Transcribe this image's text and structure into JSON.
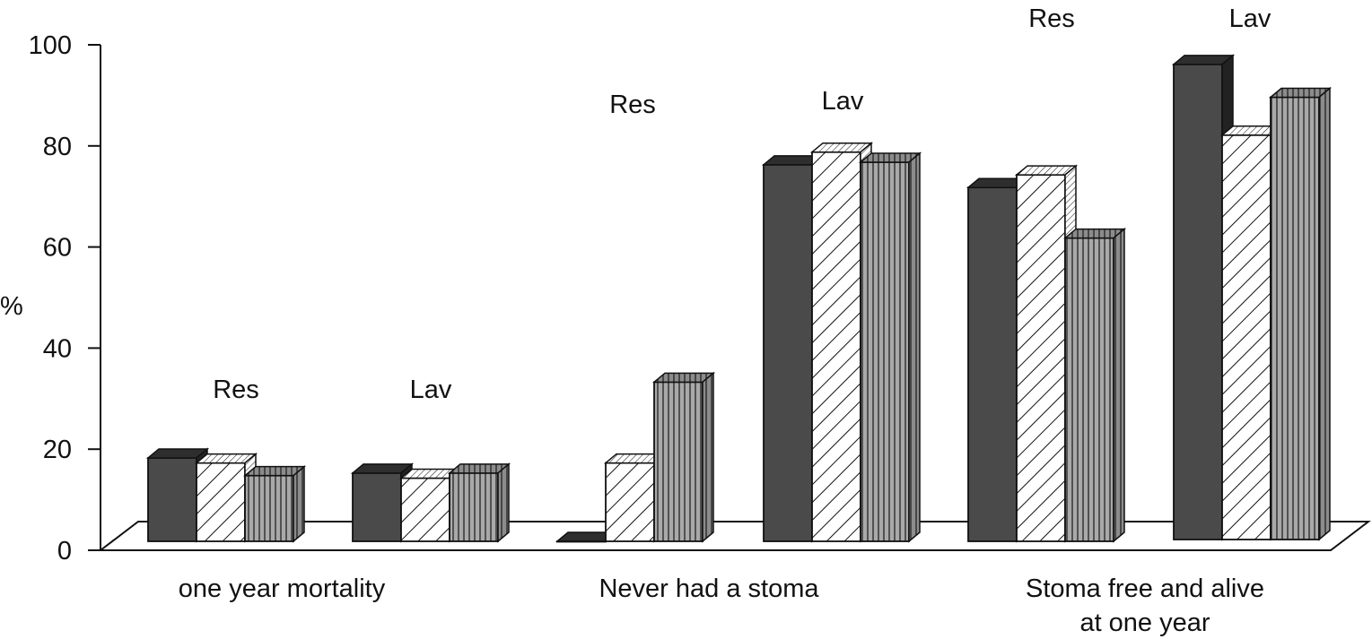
{
  "chart_data": {
    "type": "bar",
    "title": "",
    "xlabel": "",
    "ylabel": "%",
    "ylim": [
      0,
      100
    ],
    "yticks": [
      "0",
      "20",
      "40",
      "60",
      "80",
      "100"
    ],
    "grid": false,
    "legend": "none",
    "style": "3d",
    "colors": {
      "series1": "#4a4a4a",
      "series2": "#ffffff",
      "series3": "#a9a9a9",
      "stroke": "#111111"
    },
    "groups": [
      {
        "label": "one year mortality",
        "clusters": [
          {
            "label": "Res",
            "values": [
              16.5,
              15.5,
              13
            ]
          },
          {
            "label": "Lav",
            "values": [
              13.5,
              12.5,
              13.5
            ]
          }
        ]
      },
      {
        "label": "Never had a stoma",
        "clusters": [
          {
            "label": "Res",
            "values": [
              0,
              15.5,
              31.5
            ]
          },
          {
            "label": "Lav",
            "values": [
              74.5,
              77,
              75
            ]
          }
        ]
      },
      {
        "label": "Stoma free and alive at one year",
        "label_lines": [
          "Stoma free and alive",
          "at one year"
        ],
        "clusters": [
          {
            "label": "Res",
            "values": [
              70,
              72.5,
              60
            ]
          },
          {
            "label": "Lav",
            "values": [
              94,
              80,
              87.5
            ]
          }
        ]
      }
    ]
  }
}
